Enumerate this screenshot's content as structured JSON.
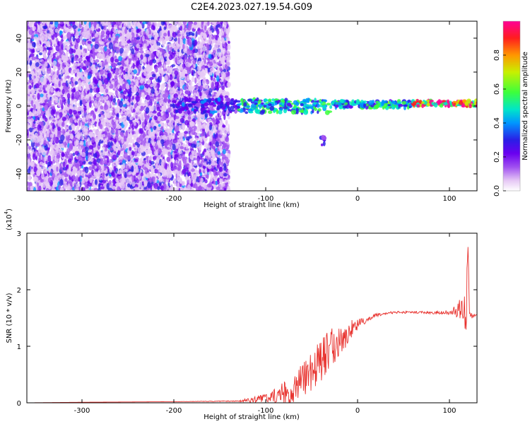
{
  "figure_title": "C2E4.2023.027.19.54.G09",
  "colors": {
    "snr_line": "#e8322e",
    "axis": "#000000",
    "colormap": [
      "#ffffff",
      "#e6c8f5",
      "#a050f0",
      "#6a00f0",
      "#2a1ee6",
      "#0096ff",
      "#00e6c8",
      "#3cff3c",
      "#c8f000",
      "#ff9600",
      "#ff1e1e",
      "#ff0096"
    ]
  },
  "chart_data": [
    {
      "type": "heatmap",
      "title": "",
      "xlabel": "Height of straight line (km)",
      "ylabel": "Frequency (Hz)",
      "xlim": [
        -360,
        130
      ],
      "ylim": [
        -50,
        50
      ],
      "xticks": [
        -300,
        -200,
        -100,
        0,
        100
      ],
      "yticks": [
        -40,
        -20,
        0,
        20,
        40
      ],
      "colorbar": {
        "label": "Normalized spectral amplitude",
        "range": [
          0,
          1
        ],
        "ticks": [
          "0.0",
          "0.2",
          "0.4",
          "0.6",
          "0.8"
        ],
        "tick_values": [
          0,
          0.2,
          0.4,
          0.6,
          0.8
        ]
      },
      "regions": [
        {
          "x": [
            -360,
            -140
          ],
          "freq_spread": [
            -50,
            50
          ],
          "amplitude": 0.15,
          "description_hidden": true
        },
        {
          "x": [
            -200,
            -130
          ],
          "freq_center": 0,
          "freq_halfwidth": 4,
          "amplitude": 0.35
        },
        {
          "x": [
            -130,
            -30
          ],
          "freq_center": 0,
          "freq_halfwidth": 4,
          "amplitude": 0.55
        },
        {
          "x": [
            -40,
            -35
          ],
          "freq_center": -20,
          "freq_halfwidth": 3,
          "amplitude": 0.3
        },
        {
          "x": [
            -30,
            60
          ],
          "freq_center": 1,
          "freq_halfwidth": 2,
          "amplitude": 0.55
        },
        {
          "x": [
            60,
            130
          ],
          "freq_center": 1.5,
          "freq_halfwidth": 1.5,
          "amplitude": 0.9
        }
      ]
    },
    {
      "type": "line",
      "title": "",
      "xlabel": "Height of straight line (km)",
      "ylabel": "SNR (10 * v/v)",
      "y_multiplier": "(x10",
      "y_multiplier_exp": "4",
      "y_multiplier_close": ")",
      "xlim": [
        -360,
        130
      ],
      "ylim": [
        0,
        3
      ],
      "xticks": [
        -300,
        -200,
        -100,
        0,
        100
      ],
      "yticks": [
        0,
        1,
        2,
        3
      ],
      "series": [
        {
          "x": [
            -360,
            -300,
            -200,
            -130,
            -115,
            -100,
            -90,
            -80,
            -70,
            -60,
            -50,
            -40,
            -30,
            -20,
            -10,
            0,
            10,
            20,
            30,
            40,
            50,
            60,
            70,
            80,
            90,
            100,
            105,
            110,
            115,
            118,
            120,
            122,
            125,
            130
          ],
          "y": [
            0.0,
            0.01,
            0.02,
            0.03,
            0.05,
            0.08,
            0.12,
            0.18,
            0.28,
            0.4,
            0.55,
            0.75,
            0.95,
            1.1,
            1.25,
            1.38,
            1.48,
            1.55,
            1.58,
            1.6,
            1.6,
            1.6,
            1.6,
            1.59,
            1.6,
            1.6,
            1.62,
            1.65,
            1.75,
            1.3,
            2.9,
            1.5,
            1.55,
            1.53
          ],
          "noise_amplitude": [
            0.0,
            0.0,
            0.0,
            0.01,
            0.05,
            0.08,
            0.15,
            0.2,
            0.28,
            0.32,
            0.35,
            0.38,
            0.35,
            0.3,
            0.2,
            0.1,
            0.05,
            0.03,
            0.02,
            0.02,
            0.02,
            0.02,
            0.02,
            0.02,
            0.03,
            0.04,
            0.08,
            0.15,
            0.3,
            0.4,
            0.1,
            0.1,
            0.04,
            0.02
          ]
        }
      ]
    }
  ]
}
